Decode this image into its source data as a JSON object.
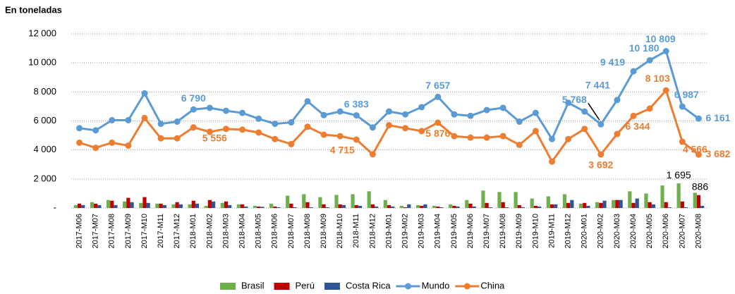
{
  "chart_data": {
    "type": "bar_line",
    "title": "En toneladas",
    "categories": [
      "2017-M06",
      "2017-M07",
      "2017-M08",
      "2017-M09",
      "2017-M10",
      "2017-M11",
      "2017-M12",
      "2018-M01",
      "2018-M02",
      "2018-M03",
      "2018-M04",
      "2018-M05",
      "2018-M06",
      "2018-M07",
      "2018-M08",
      "2018-M09",
      "2018-M10",
      "2018-M11",
      "2018-M12",
      "2019-M01",
      "2019-M02",
      "2019-M03",
      "2019-M04",
      "2019-M05",
      "2019-M06",
      "2019-M07",
      "2019-M08",
      "2019-M09",
      "2019-M10",
      "2019-M11",
      "2019-M12",
      "2020-M01",
      "2020-M02",
      "2020-M03",
      "2020-M04",
      "2020-M05",
      "2020-M06",
      "2020-M07",
      "2020-M08"
    ],
    "series": [
      {
        "name": "Brasil",
        "kind": "bar",
        "color": "#70b04c",
        "values": [
          200,
          400,
          550,
          450,
          350,
          300,
          250,
          250,
          150,
          350,
          250,
          150,
          300,
          850,
          950,
          750,
          900,
          950,
          1150,
          550,
          150,
          200,
          150,
          250,
          550,
          1200,
          1100,
          1100,
          650,
          800,
          950,
          300,
          400,
          550,
          1150,
          1000,
          1550,
          1695,
          1050
        ],
        "value_labels": [
          null,
          null,
          null,
          null,
          null,
          null,
          null,
          null,
          null,
          null,
          null,
          null,
          null,
          null,
          null,
          null,
          null,
          null,
          null,
          null,
          null,
          null,
          null,
          null,
          null,
          null,
          null,
          null,
          null,
          null,
          null,
          null,
          null,
          null,
          null,
          null,
          null,
          "1 695",
          null
        ]
      },
      {
        "name": "Perú",
        "kind": "bar",
        "color": "#c00000",
        "values": [
          300,
          300,
          500,
          700,
          750,
          300,
          400,
          500,
          550,
          450,
          250,
          100,
          100,
          300,
          400,
          250,
          250,
          200,
          250,
          200,
          50,
          150,
          100,
          150,
          300,
          350,
          400,
          200,
          150,
          250,
          350,
          350,
          350,
          550,
          350,
          400,
          400,
          450,
          886
        ],
        "value_labels": [
          null,
          null,
          null,
          null,
          null,
          null,
          null,
          null,
          null,
          null,
          null,
          null,
          null,
          null,
          null,
          null,
          null,
          null,
          null,
          null,
          null,
          null,
          null,
          null,
          null,
          null,
          null,
          null,
          null,
          null,
          null,
          null,
          null,
          null,
          null,
          null,
          null,
          null,
          "886"
        ]
      },
      {
        "name": "Costa Rica",
        "kind": "bar",
        "color": "#2e5597",
        "values": [
          200,
          200,
          200,
          400,
          350,
          200,
          250,
          300,
          450,
          200,
          100,
          80,
          50,
          50,
          50,
          50,
          200,
          150,
          100,
          100,
          250,
          250,
          50,
          100,
          100,
          50,
          50,
          50,
          100,
          250,
          550,
          150,
          500,
          550,
          650,
          250,
          50,
          50,
          150
        ]
      },
      {
        "name": "Mundo",
        "kind": "line",
        "color": "#5b9bd5",
        "values": [
          5500,
          5350,
          6050,
          6050,
          7900,
          5800,
          5950,
          6790,
          6900,
          6700,
          6550,
          6150,
          5800,
          5900,
          7350,
          6400,
          6650,
          6383,
          5550,
          6650,
          6450,
          6950,
          7657,
          6450,
          6350,
          6750,
          6900,
          5950,
          6550,
          4750,
          7250,
          6650,
          5768,
          7441,
          9419,
          10180,
          10809,
          6987,
          6161
        ],
        "value_labels": [
          null,
          null,
          null,
          null,
          null,
          null,
          null,
          "6 790",
          null,
          null,
          null,
          null,
          null,
          null,
          null,
          null,
          null,
          "6 383",
          null,
          null,
          null,
          null,
          "7 657",
          null,
          null,
          null,
          null,
          null,
          null,
          null,
          null,
          null,
          "5 768",
          "7 441",
          "9 419",
          "10 180",
          "10 809",
          "6 987",
          "6 161"
        ]
      },
      {
        "name": "China",
        "kind": "line",
        "color": "#ed7d31",
        "values": [
          4500,
          4150,
          4500,
          4300,
          6200,
          4800,
          4800,
          5556,
          5250,
          5450,
          5400,
          5200,
          4750,
          4400,
          5600,
          5050,
          4950,
          4715,
          3700,
          5700,
          5500,
          5300,
          5876,
          4950,
          4850,
          4850,
          4950,
          4350,
          5300,
          3200,
          4750,
          5450,
          3692,
          5100,
          6344,
          6850,
          8103,
          4566,
          3682
        ],
        "value_labels": [
          null,
          null,
          null,
          null,
          null,
          null,
          null,
          "5 556",
          null,
          null,
          null,
          null,
          null,
          null,
          null,
          null,
          null,
          "4 715",
          null,
          null,
          null,
          null,
          "5 876",
          null,
          null,
          null,
          null,
          null,
          null,
          null,
          null,
          null,
          "3 692",
          null,
          "6 344",
          null,
          "8 103",
          "4 566",
          "3 682"
        ]
      }
    ],
    "ylim": [
      0,
      12000
    ],
    "yticks": [
      {
        "value": 0,
        "label": "-"
      },
      {
        "value": 2000,
        "label": "2 000"
      },
      {
        "value": 4000,
        "label": "4 000"
      },
      {
        "value": 6000,
        "label": "6 000"
      },
      {
        "value": 8000,
        "label": "8 000"
      },
      {
        "value": 10000,
        "label": "10 000"
      },
      {
        "value": 12000,
        "label": "12 000"
      }
    ],
    "grid": true,
    "legend": "bottom"
  }
}
